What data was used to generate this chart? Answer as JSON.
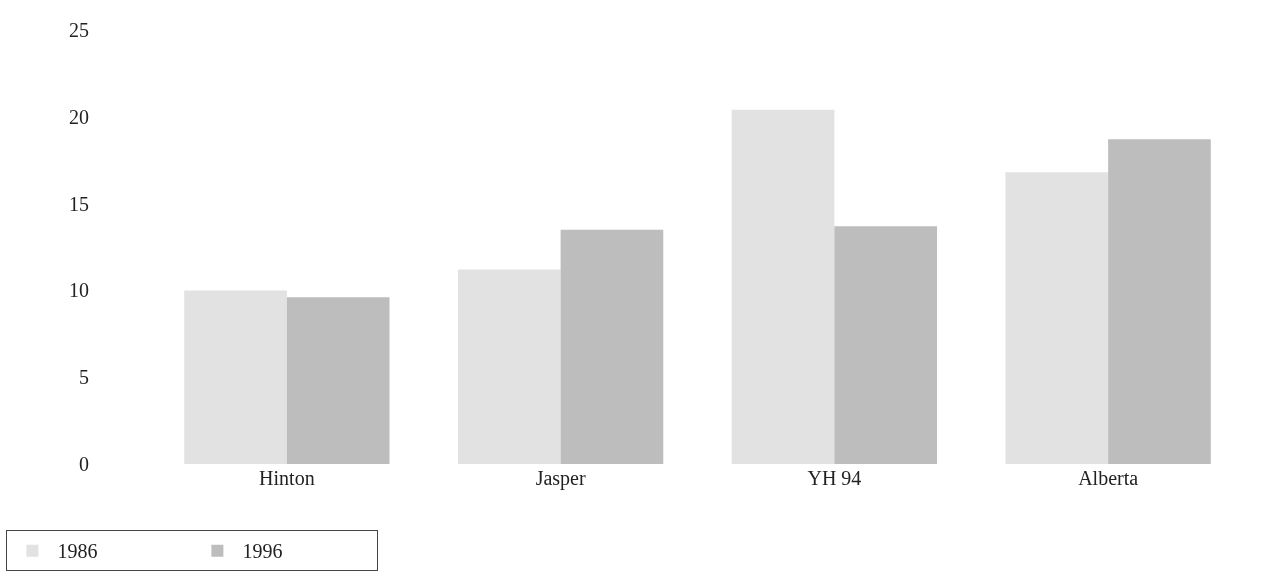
{
  "chart_data": {
    "type": "bar",
    "categories": [
      "Hinton",
      "Jasper",
      "YH 94",
      "Alberta"
    ],
    "series": [
      {
        "name": "1986",
        "color": "#e2e2e2",
        "values": [
          10.0,
          11.2,
          20.4,
          16.8
        ]
      },
      {
        "name": "1996",
        "color": "#bdbdbd",
        "values": [
          9.6,
          13.5,
          13.7,
          18.7
        ]
      }
    ],
    "ylim": [
      0,
      25
    ],
    "yticks": [
      0,
      5,
      10,
      15,
      20,
      25
    ],
    "legend": "bottom left"
  }
}
